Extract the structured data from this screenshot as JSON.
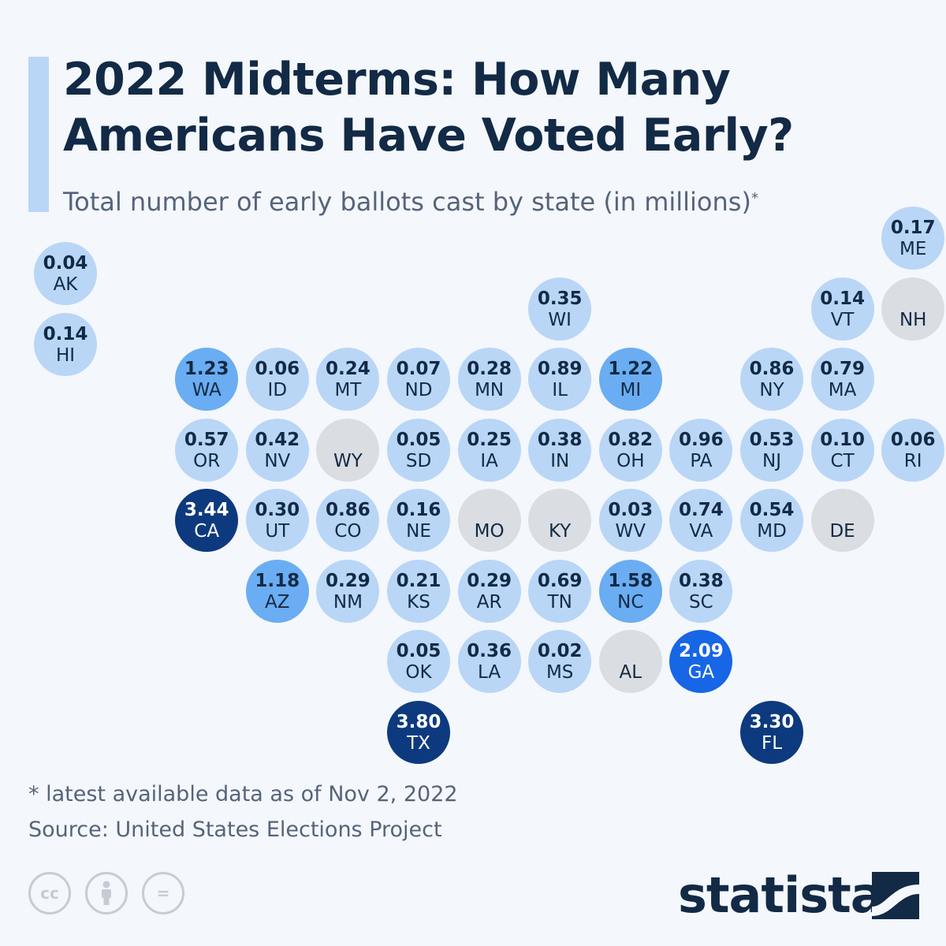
{
  "title": "2022 Midterms: How Many Americans Have Voted Early?",
  "subtitle": "Total number of early ballots cast by state (in millions)",
  "subtitle_marker": "*",
  "footnote": "* latest available data as of Nov 2, 2022",
  "source": "Source: United States Elections Project",
  "brand": "statista",
  "license_icons": [
    "cc-icon",
    "attribution-icon",
    "no-derivatives-icon"
  ],
  "license_text": {
    "cc": "cc",
    "nd": "="
  },
  "colors": {
    "background": "#f4f7fb",
    "accent": "#b9d6f7",
    "title": "#122a45",
    "text": "#55647a",
    "no_data": "#dadde2",
    "low": "#b9d6f7",
    "mid": "#6aadf2",
    "high": "#1766e6",
    "max": "#0d3a7e"
  },
  "chart_data": {
    "type": "tile-map",
    "unit": "millions",
    "states": [
      {
        "abbr": "AK",
        "value": 0.04,
        "label": "0.04",
        "col": 0,
        "row": 0
      },
      {
        "abbr": "HI",
        "value": 0.14,
        "label": "0.14",
        "col": 0,
        "row": 1
      },
      {
        "abbr": "ME",
        "value": 0.17,
        "label": "0.17",
        "col": 12,
        "row": -0.5
      },
      {
        "abbr": "WI",
        "value": 0.35,
        "label": "0.35",
        "col": 7,
        "row": 0.5
      },
      {
        "abbr": "VT",
        "value": 0.14,
        "label": "0.14",
        "col": 11,
        "row": 0.5
      },
      {
        "abbr": "NH",
        "value": null,
        "label": "",
        "col": 12,
        "row": 0.5
      },
      {
        "abbr": "WA",
        "value": 1.23,
        "label": "1.23",
        "col": 2,
        "row": 1.5
      },
      {
        "abbr": "ID",
        "value": 0.06,
        "label": "0.06",
        "col": 3,
        "row": 1.5
      },
      {
        "abbr": "MT",
        "value": 0.24,
        "label": "0.24",
        "col": 4,
        "row": 1.5
      },
      {
        "abbr": "ND",
        "value": 0.07,
        "label": "0.07",
        "col": 5,
        "row": 1.5
      },
      {
        "abbr": "MN",
        "value": 0.28,
        "label": "0.28",
        "col": 6,
        "row": 1.5
      },
      {
        "abbr": "IL",
        "value": 0.89,
        "label": "0.89",
        "col": 7,
        "row": 1.5
      },
      {
        "abbr": "MI",
        "value": 1.22,
        "label": "1.22",
        "col": 8,
        "row": 1.5
      },
      {
        "abbr": "NY",
        "value": 0.86,
        "label": "0.86",
        "col": 10,
        "row": 1.5
      },
      {
        "abbr": "MA",
        "value": 0.79,
        "label": "0.79",
        "col": 11,
        "row": 1.5
      },
      {
        "abbr": "OR",
        "value": 0.57,
        "label": "0.57",
        "col": 2,
        "row": 2.5
      },
      {
        "abbr": "NV",
        "value": 0.42,
        "label": "0.42",
        "col": 3,
        "row": 2.5
      },
      {
        "abbr": "WY",
        "value": null,
        "label": "",
        "col": 4,
        "row": 2.5
      },
      {
        "abbr": "SD",
        "value": 0.05,
        "label": "0.05",
        "col": 5,
        "row": 2.5
      },
      {
        "abbr": "IA",
        "value": 0.25,
        "label": "0.25",
        "col": 6,
        "row": 2.5
      },
      {
        "abbr": "IN",
        "value": 0.38,
        "label": "0.38",
        "col": 7,
        "row": 2.5
      },
      {
        "abbr": "OH",
        "value": 0.82,
        "label": "0.82",
        "col": 8,
        "row": 2.5
      },
      {
        "abbr": "PA",
        "value": 0.96,
        "label": "0.96",
        "col": 9,
        "row": 2.5
      },
      {
        "abbr": "NJ",
        "value": 0.53,
        "label": "0.53",
        "col": 10,
        "row": 2.5
      },
      {
        "abbr": "CT",
        "value": 0.1,
        "label": "0.10",
        "col": 11,
        "row": 2.5
      },
      {
        "abbr": "RI",
        "value": 0.06,
        "label": "0.06",
        "col": 12,
        "row": 2.5
      },
      {
        "abbr": "CA",
        "value": 3.44,
        "label": "3.44",
        "col": 2,
        "row": 3.5
      },
      {
        "abbr": "UT",
        "value": 0.3,
        "label": "0.30",
        "col": 3,
        "row": 3.5
      },
      {
        "abbr": "CO",
        "value": 0.86,
        "label": "0.86",
        "col": 4,
        "row": 3.5
      },
      {
        "abbr": "NE",
        "value": 0.16,
        "label": "0.16",
        "col": 5,
        "row": 3.5
      },
      {
        "abbr": "MO",
        "value": null,
        "label": "",
        "col": 6,
        "row": 3.5
      },
      {
        "abbr": "KY",
        "value": null,
        "label": "",
        "col": 7,
        "row": 3.5
      },
      {
        "abbr": "WV",
        "value": 0.03,
        "label": "0.03",
        "col": 8,
        "row": 3.5
      },
      {
        "abbr": "VA",
        "value": 0.74,
        "label": "0.74",
        "col": 9,
        "row": 3.5
      },
      {
        "abbr": "MD",
        "value": 0.54,
        "label": "0.54",
        "col": 10,
        "row": 3.5
      },
      {
        "abbr": "DE",
        "value": null,
        "label": "",
        "col": 11,
        "row": 3.5
      },
      {
        "abbr": "AZ",
        "value": 1.18,
        "label": "1.18",
        "col": 3,
        "row": 4.5
      },
      {
        "abbr": "NM",
        "value": 0.29,
        "label": "0.29",
        "col": 4,
        "row": 4.5
      },
      {
        "abbr": "KS",
        "value": 0.21,
        "label": "0.21",
        "col": 5,
        "row": 4.5
      },
      {
        "abbr": "AR",
        "value": 0.29,
        "label": "0.29",
        "col": 6,
        "row": 4.5
      },
      {
        "abbr": "TN",
        "value": 0.69,
        "label": "0.69",
        "col": 7,
        "row": 4.5
      },
      {
        "abbr": "NC",
        "value": 1.58,
        "label": "1.58",
        "col": 8,
        "row": 4.5
      },
      {
        "abbr": "SC",
        "value": 0.38,
        "label": "0.38",
        "col": 9,
        "row": 4.5
      },
      {
        "abbr": "OK",
        "value": 0.05,
        "label": "0.05",
        "col": 5,
        "row": 5.5
      },
      {
        "abbr": "LA",
        "value": 0.36,
        "label": "0.36",
        "col": 6,
        "row": 5.5
      },
      {
        "abbr": "MS",
        "value": 0.02,
        "label": "0.02",
        "col": 7,
        "row": 5.5
      },
      {
        "abbr": "AL",
        "value": null,
        "label": "",
        "col": 8,
        "row": 5.5
      },
      {
        "abbr": "GA",
        "value": 2.09,
        "label": "2.09",
        "col": 9,
        "row": 5.5
      },
      {
        "abbr": "TX",
        "value": 3.8,
        "label": "3.80",
        "col": 5,
        "row": 6.5
      },
      {
        "abbr": "FL",
        "value": 3.3,
        "label": "3.30",
        "col": 10,
        "row": 6.5
      }
    ]
  }
}
